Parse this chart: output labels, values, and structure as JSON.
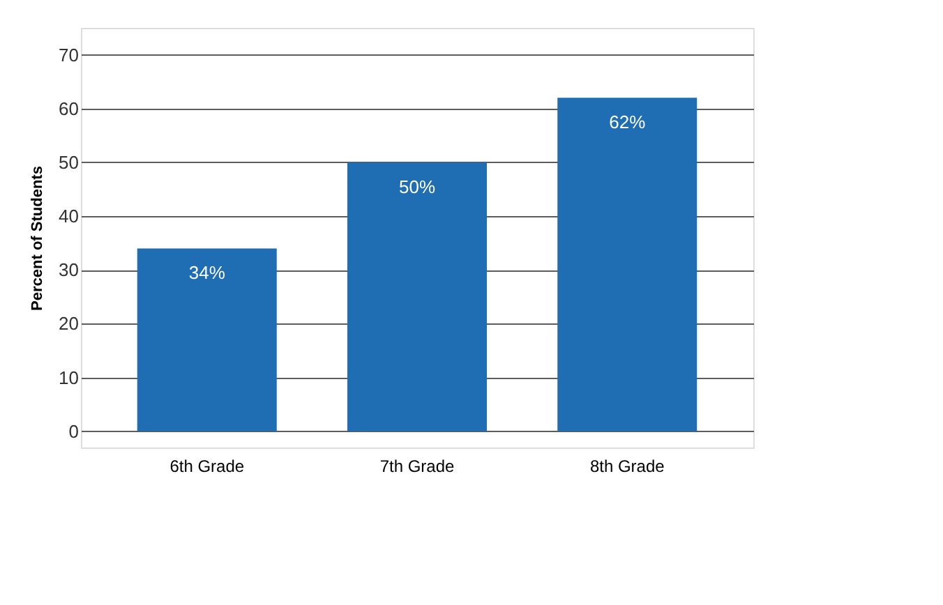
{
  "chart_data": {
    "type": "bar",
    "ylabel": "Percent of Students",
    "categories": [
      "6th Grade",
      "7th Grade",
      "8th Grade"
    ],
    "values": [
      34,
      50,
      62
    ],
    "color": "#1f6db3",
    "value_labels": [
      "34%",
      "50%",
      "62%"
    ],
    "ylim": [
      -3,
      75
    ],
    "yticks": [
      0,
      10,
      20,
      30,
      40,
      50,
      60,
      70
    ],
    "grid": "y"
  }
}
